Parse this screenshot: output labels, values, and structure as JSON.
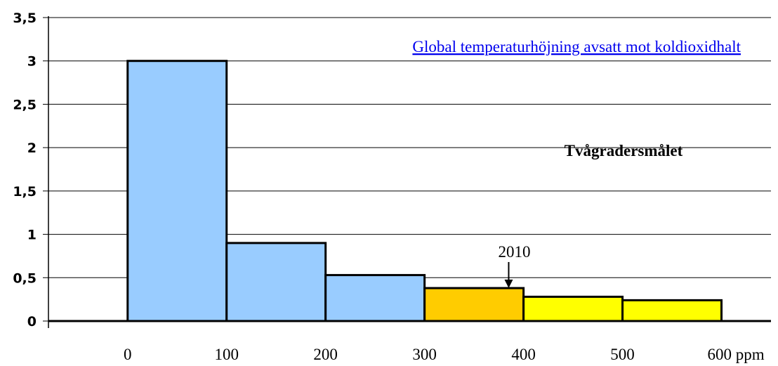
{
  "chart_data": {
    "type": "bar",
    "title": "Global temperaturhöjning avsatt mot koldioxidhalt",
    "xlabel": "",
    "ylabel": "",
    "x_tick_labels": [
      "0",
      "100",
      "200",
      "300",
      "400",
      "500",
      "600 ppm"
    ],
    "y_tick_labels": [
      "0",
      "0,5",
      "1",
      "1,5",
      "2",
      "2,5",
      "3",
      "3,5"
    ],
    "ylim": [
      0,
      3.5
    ],
    "xlim": [
      -80,
      650
    ],
    "grid": true,
    "bars": [
      {
        "x_start": 0,
        "x_end": 100,
        "value": 3.0,
        "color": "#99ccff"
      },
      {
        "x_start": 100,
        "x_end": 200,
        "value": 0.9,
        "color": "#99ccff"
      },
      {
        "x_start": 200,
        "x_end": 300,
        "value": 0.53,
        "color": "#99ccff"
      },
      {
        "x_start": 300,
        "x_end": 400,
        "value": 0.38,
        "color": "#ffcc00"
      },
      {
        "x_start": 400,
        "x_end": 500,
        "value": 0.28,
        "color": "#ffff00"
      },
      {
        "x_start": 500,
        "x_end": 600,
        "value": 0.24,
        "color": "#ffff00"
      }
    ],
    "annotations": {
      "goal_label": "Tvågradersmålet",
      "year_label": "2010",
      "year_value": 385
    }
  }
}
